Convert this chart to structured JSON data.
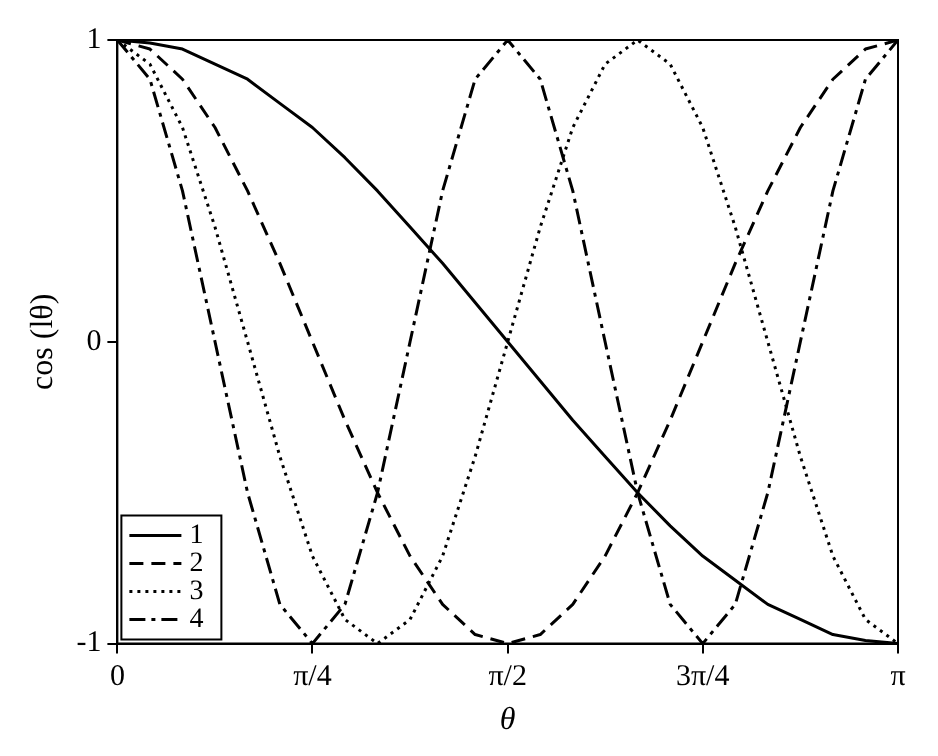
{
  "chart_data": {
    "type": "line",
    "xlabel": "θ",
    "ylabel": "cos (lθ)",
    "xlim": [
      0,
      3.142
    ],
    "xticks": [
      0,
      {
        "value": 0.785,
        "label": "π/4"
      },
      {
        "value": 1.571,
        "label": "π/2"
      },
      {
        "value": 2.356,
        "label": "3π/4"
      },
      {
        "value": 3.142,
        "label": "π"
      }
    ],
    "ylim": [
      -1,
      1
    ],
    "yticks": [
      -1,
      0,
      1
    ],
    "grid": false,
    "legend": "bottom left",
    "marker": "none",
    "x": [
      0,
      0.131,
      0.262,
      0.393,
      0.524,
      0.654,
      0.785,
      0.916,
      1.047,
      1.178,
      1.309,
      1.44,
      1.571,
      1.702,
      1.833,
      1.963,
      2.094,
      2.225,
      2.356,
      2.487,
      2.618,
      2.749,
      2.88,
      3.011,
      3.142
    ],
    "series": [
      {
        "name": "1",
        "color": "#000000",
        "line_style": "solid",
        "values": [
          1,
          0.99,
          0.97,
          0.92,
          0.87,
          0.79,
          0.71,
          0.61,
          0.5,
          0.38,
          0.26,
          0.13,
          0,
          -0.13,
          -0.26,
          -0.38,
          -0.5,
          -0.61,
          -0.71,
          -0.79,
          -0.87,
          -0.92,
          -0.97,
          -0.99,
          -1
        ]
      },
      {
        "name": "2",
        "color": "#000000",
        "line_style": "dashed",
        "values": [
          1,
          0.97,
          0.87,
          0.71,
          0.5,
          0.26,
          0,
          -0.26,
          -0.5,
          -0.71,
          -0.87,
          -0.97,
          -1,
          -0.97,
          -0.87,
          -0.71,
          -0.5,
          -0.26,
          0,
          0.26,
          0.5,
          0.71,
          0.87,
          0.97,
          1
        ]
      },
      {
        "name": "3",
        "color": "#000000",
        "line_style": "dotted",
        "values": [
          1,
          0.92,
          0.71,
          0.38,
          0,
          -0.38,
          -0.71,
          -0.92,
          -1,
          -0.92,
          -0.71,
          -0.38,
          0,
          0.38,
          0.71,
          0.92,
          1,
          0.92,
          0.71,
          0.38,
          0,
          -0.38,
          -0.71,
          -0.92,
          -1
        ]
      },
      {
        "name": "4",
        "color": "#000000",
        "line_style": "dashdot",
        "values": [
          1,
          0.87,
          0.5,
          0,
          -0.5,
          -0.87,
          -1,
          -0.87,
          -0.5,
          0,
          0.5,
          0.87,
          1,
          0.87,
          0.5,
          0,
          -0.5,
          -0.87,
          -1,
          -0.87,
          -0.5,
          0,
          0.5,
          0.87,
          1
        ]
      }
    ]
  }
}
